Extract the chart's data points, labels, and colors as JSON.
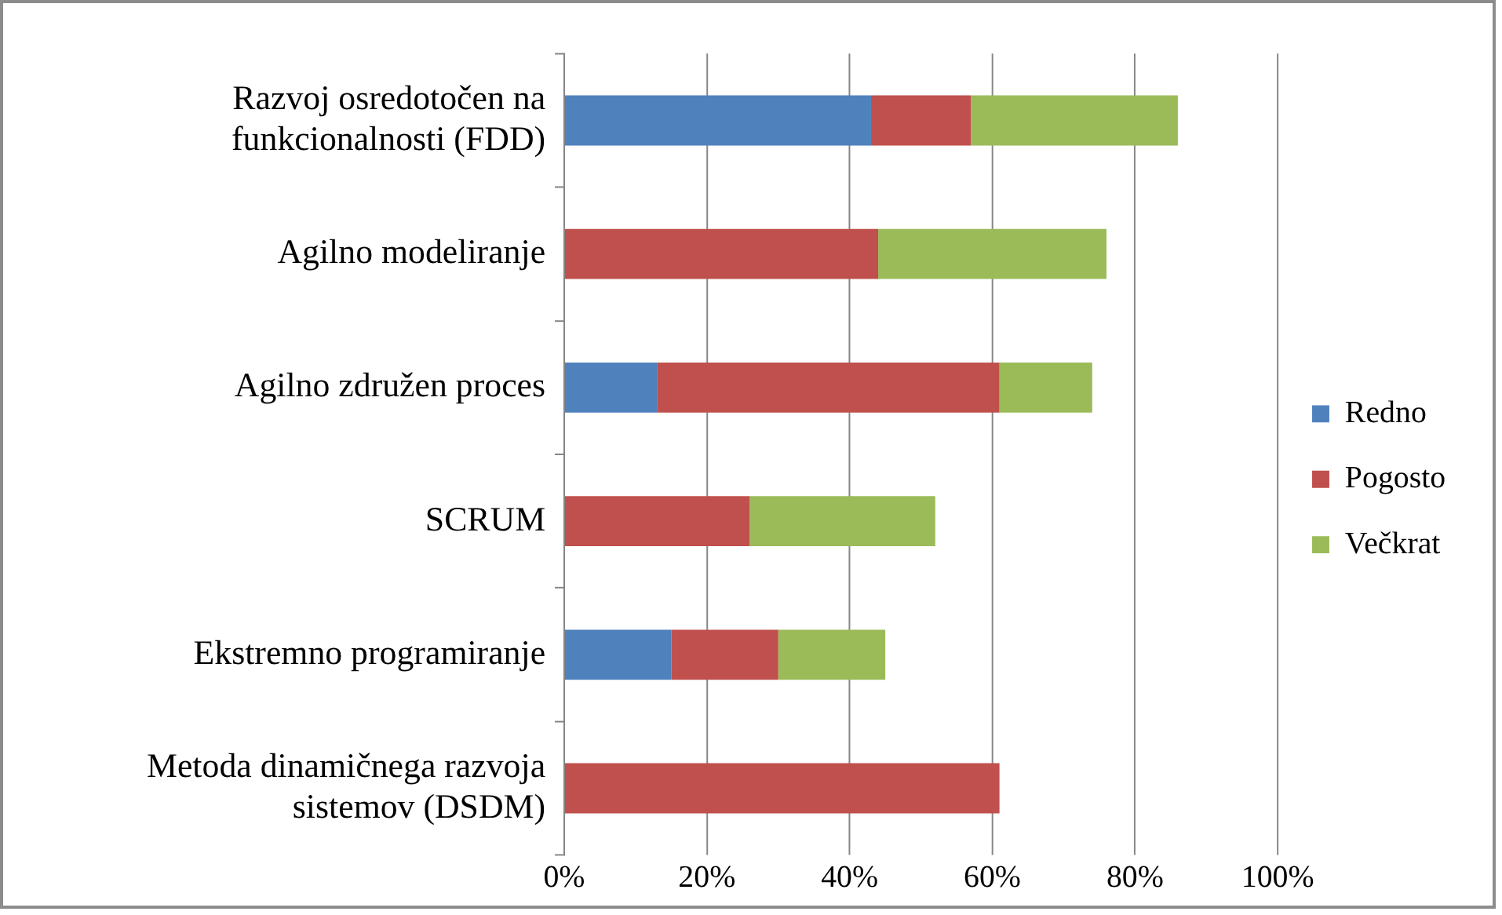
{
  "chart_data": {
    "type": "bar",
    "orientation": "horizontal",
    "stacked": true,
    "categories": [
      "Razvoj osredotočen na funkcionalnosti (FDD)",
      "Agilno modeliranje",
      "Agilno združen proces",
      "SCRUM",
      "Ekstremno programiranje",
      "Metoda dinamičnega razvoja sistemov (DSDM)"
    ],
    "series": [
      {
        "name": "Redno",
        "color": "#4f81bd",
        "values": [
          43,
          0,
          13,
          0,
          15,
          0
        ]
      },
      {
        "name": "Pogosto",
        "color": "#c0504d",
        "values": [
          14,
          44,
          48,
          26,
          15,
          61
        ]
      },
      {
        "name": "Večkrat",
        "color": "#9bbb59",
        "values": [
          29,
          32,
          13,
          26,
          15,
          0
        ]
      }
    ],
    "xlim": [
      0,
      100
    ],
    "xticks": [
      {
        "value": 0,
        "label": "0%"
      },
      {
        "value": 20,
        "label": "20%"
      },
      {
        "value": 40,
        "label": "40%"
      },
      {
        "value": 60,
        "label": "60%"
      },
      {
        "value": 80,
        "label": "80%"
      },
      {
        "value": 100,
        "label": "100%"
      }
    ],
    "grid": "x",
    "legend": "right"
  }
}
